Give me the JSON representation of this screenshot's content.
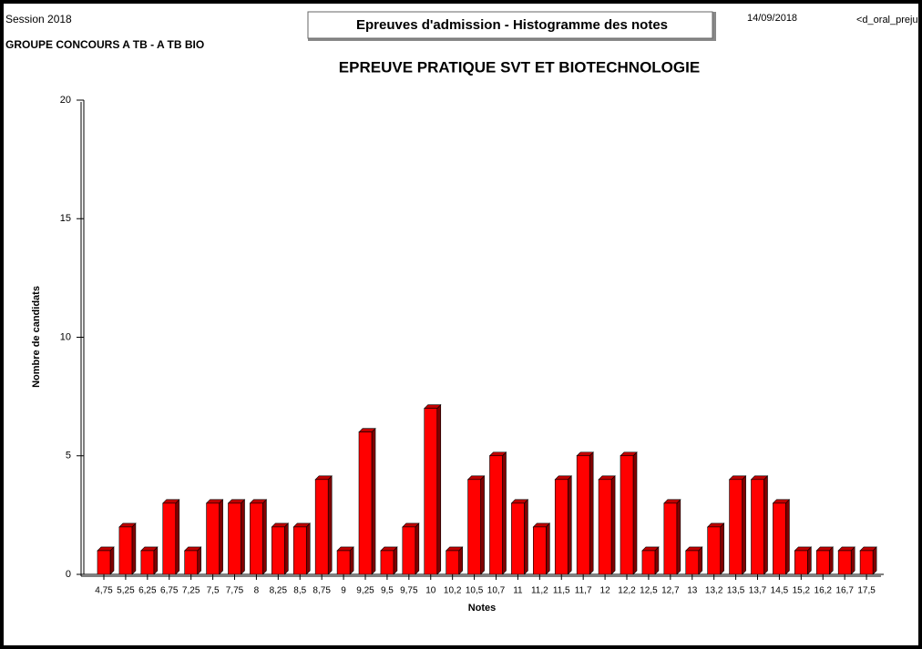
{
  "header": {
    "session": "Session 2018",
    "group": "GROUPE CONCOURS A TB - A TB BIO",
    "banner": "Epreuves d'admission - Histogramme des notes",
    "date": "14/09/2018",
    "code": "<d_oral_preju"
  },
  "chart_data": {
    "type": "bar",
    "title": "EPREUVE PRATIQUE SVT ET BIOTECHNOLOGIE",
    "x_label": "Notes",
    "y_label": "Nombre de candidats",
    "color": "#ff0000",
    "categories": [
      "4,75",
      "5,25",
      "6,25",
      "6,75",
      "7,25",
      "7,5",
      "7,75",
      "8",
      "8,25",
      "8,5",
      "8,75",
      "9",
      "9,25",
      "9,5",
      "9,75",
      "10",
      "10,2",
      "10,5",
      "10,7",
      "11",
      "11,2",
      "11,5",
      "11,7",
      "12",
      "12,2",
      "12,5",
      "12,7",
      "13",
      "13,2",
      "13,5",
      "13,7",
      "14,5",
      "15,2",
      "16,2",
      "16,7",
      "17,5"
    ],
    "values": [
      1,
      2,
      1,
      3,
      1,
      3,
      3,
      3,
      2,
      2,
      4,
      1,
      6,
      1,
      2,
      7,
      1,
      4,
      5,
      3,
      2,
      4,
      5,
      4,
      5,
      1,
      3,
      1,
      2,
      4,
      4,
      3,
      1,
      1,
      1,
      1
    ],
    "ylim": [
      0,
      20
    ],
    "yticks": [
      0,
      5,
      10,
      15,
      20
    ]
  }
}
